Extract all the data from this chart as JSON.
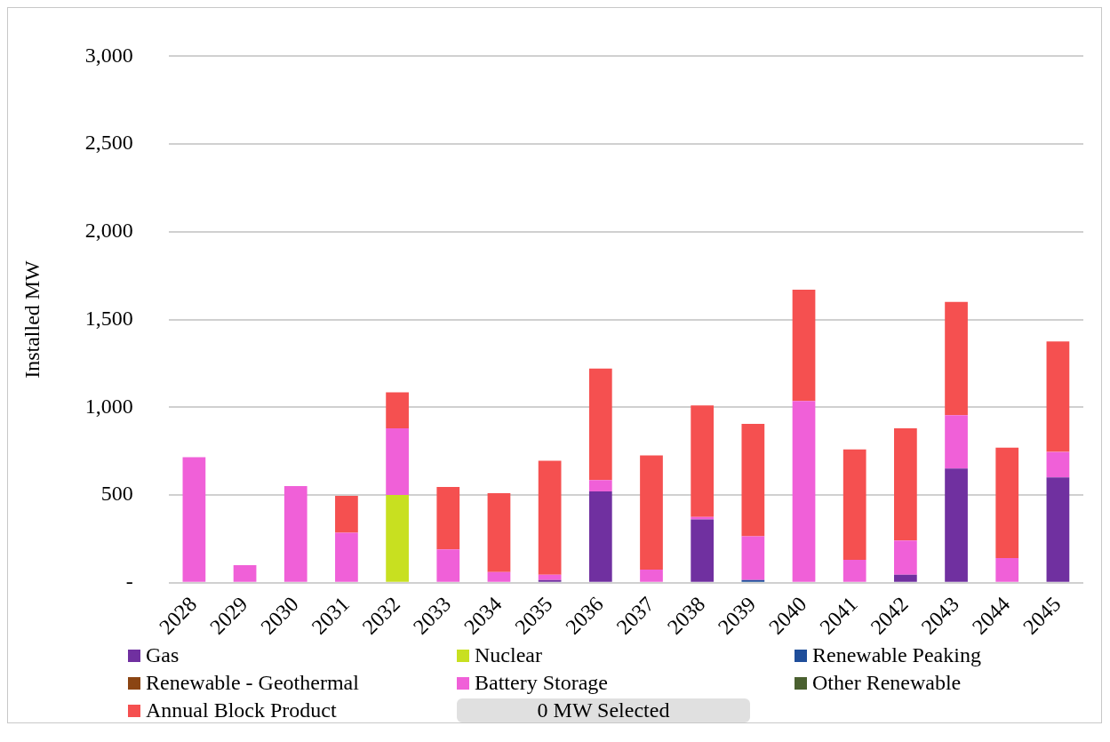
{
  "chart_data": {
    "type": "bar",
    "stacked": true,
    "ylabel": "Installed MW",
    "categories": [
      "2028",
      "2029",
      "2030",
      "2031",
      "2032",
      "2033",
      "2034",
      "2035",
      "2036",
      "2037",
      "2038",
      "2039",
      "2040",
      "2041",
      "2042",
      "2043",
      "2044",
      "2045"
    ],
    "series": [
      {
        "name": "Gas",
        "color": "#7030a0",
        "values": [
          0,
          0,
          0,
          0,
          0,
          0,
          0,
          15,
          520,
          0,
          360,
          0,
          0,
          0,
          45,
          650,
          0,
          600
        ]
      },
      {
        "name": "Nuclear",
        "color": "#c8e020",
        "values": [
          0,
          0,
          0,
          0,
          500,
          0,
          0,
          0,
          0,
          0,
          0,
          0,
          0,
          0,
          0,
          0,
          0,
          0
        ]
      },
      {
        "name": "Renewable Peaking",
        "color": "#1f4e9a",
        "values": [
          0,
          0,
          0,
          0,
          0,
          0,
          0,
          0,
          0,
          0,
          0,
          15,
          0,
          0,
          0,
          0,
          0,
          0
        ]
      },
      {
        "name": "Renewable - Geothermal",
        "color": "#8b4513",
        "values": [
          0,
          0,
          0,
          0,
          0,
          0,
          0,
          0,
          0,
          0,
          0,
          0,
          0,
          0,
          0,
          0,
          0,
          0
        ]
      },
      {
        "name": "Battery Storage",
        "color": "#f060d8",
        "values": [
          715,
          100,
          550,
          285,
          380,
          190,
          60,
          30,
          65,
          75,
          15,
          250,
          1035,
          130,
          195,
          305,
          140,
          145
        ]
      },
      {
        "name": "Other Renewable",
        "color": "#4a6030",
        "values": [
          0,
          0,
          0,
          0,
          0,
          0,
          0,
          0,
          0,
          0,
          0,
          0,
          0,
          0,
          0,
          0,
          0,
          0
        ]
      },
      {
        "name": "Annual Block Product",
        "color": "#f55050",
        "values": [
          0,
          0,
          0,
          210,
          205,
          355,
          450,
          650,
          635,
          650,
          635,
          640,
          635,
          630,
          640,
          645,
          630,
          630
        ]
      }
    ],
    "ylim": [
      0,
      3000
    ],
    "yticks": [
      {
        "value": 0,
        "label": "-"
      },
      500,
      {
        "value": 1000,
        "label": "1,000"
      },
      {
        "value": 1500,
        "label": "1,500"
      },
      {
        "value": 2000,
        "label": "2,000"
      },
      {
        "value": 2500,
        "label": "2,500"
      },
      {
        "value": 3000,
        "label": "3,000"
      }
    ],
    "grid": "y",
    "legend": "bottom",
    "annotations": [
      "0 MW Selected"
    ]
  }
}
